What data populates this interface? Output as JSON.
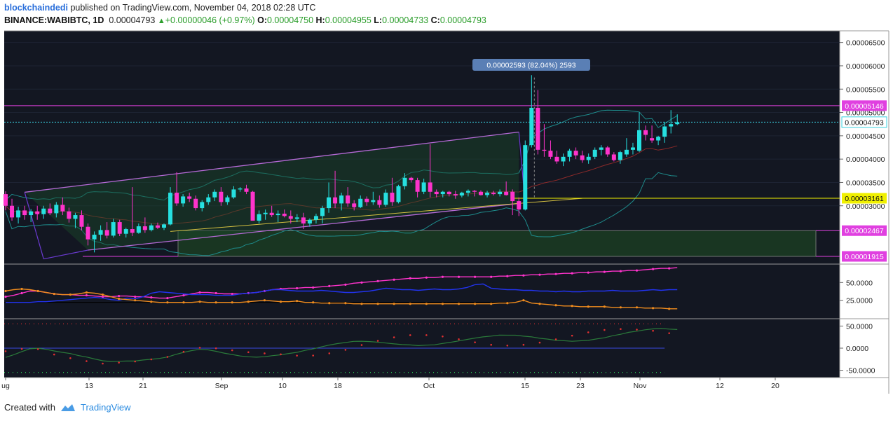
{
  "header": {
    "user": "blockchaindedi",
    "published": "published on TradingView.com, November 04, 2018 02:28 UTC",
    "symbol": "BINANCE:WABIBTC, 1D",
    "last": "0.00004793",
    "change": "+0.00000046 (+0.97%)",
    "o_label": "O:",
    "o": "0.00004750",
    "h_label": "H:",
    "h": "0.00004955",
    "l_label": "L:",
    "l": "0.00004733",
    "c_label": "C:",
    "c": "0.00004793"
  },
  "footer": {
    "created": "Created with",
    "brand": "TradingView"
  },
  "colors": {
    "background": "#131722",
    "up": "#26e0e0",
    "down": "#ff33cc",
    "channel": "#b56ad6",
    "level_magenta": "#e040e0",
    "level_yellow": "#f0f000",
    "zone": "#1b3a22",
    "bollinger": "#1e8c8c",
    "bb_mid": "#8c2a2a",
    "rsi_pink": "#ff33cc",
    "rsi_blue": "#2233ee",
    "rsi_orange": "#f08c1e"
  },
  "chart_data": {
    "type": "candlestick",
    "price_axis": {
      "ticks": [
        "0.00006500",
        "0.00006000",
        "0.00005500",
        "0.00005000",
        "0.00004500",
        "0.00004000",
        "0.00003500",
        "0.00003000"
      ],
      "ylim": [
        1.75e-05,
        6.75e-05
      ]
    },
    "x_ticks": [
      "ug",
      "13",
      "21",
      "Sep",
      "10",
      "18",
      "Oct",
      "15",
      "23",
      "Nov",
      "12",
      "20"
    ],
    "levels": [
      {
        "label": "0.00005146",
        "value": 5.146e-05,
        "kind": "magenta"
      },
      {
        "label": "0.00004793",
        "value": 4.793e-05,
        "kind": "current"
      },
      {
        "label": "0.00003161",
        "value": 3.161e-05,
        "kind": "yellow"
      },
      {
        "label": "0.00002467",
        "value": 2.467e-05,
        "kind": "zone-top"
      },
      {
        "label": "0.00001915",
        "value": 1.915e-05,
        "kind": "zone-bottom"
      }
    ],
    "measure_label": "0.00002593 (82.04%) 2593",
    "candles_ohlc": [
      [
        3.25e-05,
        3.31e-05,
        2.9e-05,
        3e-05
      ],
      [
        3e-05,
        3.15e-05,
        2.68e-05,
        2.75e-05
      ],
      [
        2.75e-05,
        2.98e-05,
        2.62e-05,
        2.9e-05
      ],
      [
        2.9e-05,
        3e-05,
        2.7e-05,
        2.8e-05
      ],
      [
        2.8e-05,
        2.93e-05,
        2.65e-05,
        2.88e-05
      ],
      [
        2.88e-05,
        3e-05,
        2.7e-05,
        2.82e-05
      ],
      [
        2.82e-05,
        3e-05,
        2.72e-05,
        2.94e-05
      ],
      [
        2.94e-05,
        3.05e-05,
        2.8e-05,
        2.84e-05
      ],
      [
        2.84e-05,
        3.08e-05,
        2.75e-05,
        3.02e-05
      ],
      [
        3.02e-05,
        3.18e-05,
        2.8e-05,
        2.88e-05
      ],
      [
        2.88e-05,
        2.96e-05,
        2.64e-05,
        2.72e-05
      ],
      [
        2.72e-05,
        2.85e-05,
        2.52e-05,
        2.8e-05
      ],
      [
        2.8e-05,
        2.9e-05,
        2.47e-05,
        2.55e-05
      ],
      [
        2.55e-05,
        2.62e-05,
        2.15e-05,
        2.28e-05
      ],
      [
        2.28e-05,
        2.45e-05,
        2e-05,
        2.38e-05
      ],
      [
        2.38e-05,
        2.58e-05,
        2.25e-05,
        2.48e-05
      ],
      [
        2.48e-05,
        2.65e-05,
        2.3e-05,
        2.36e-05
      ],
      [
        2.36e-05,
        2.72e-05,
        2.32e-05,
        2.65e-05
      ],
      [
        2.65e-05,
        2.7e-05,
        2.35e-05,
        2.4e-05
      ],
      [
        2.4e-05,
        2.53e-05,
        2.32e-05,
        2.5e-05
      ],
      [
        2.5e-05,
        3.4e-05,
        2.35e-05,
        2.42e-05
      ],
      [
        2.42e-05,
        2.62e-05,
        2.4e-05,
        2.56e-05
      ],
      [
        2.56e-05,
        2.75e-05,
        2.42e-05,
        2.48e-05
      ],
      [
        2.48e-05,
        2.62e-05,
        2.45e-05,
        2.58e-05
      ],
      [
        2.58e-05,
        2.64e-05,
        2.5e-05,
        2.53e-05
      ],
      [
        2.53e-05,
        2.62e-05,
        2.48e-05,
        2.6e-05
      ],
      [
        2.6e-05,
        3.4e-05,
        2.58e-05,
        3.28e-05
      ],
      [
        3.28e-05,
        3.72e-05,
        3e-05,
        3.05e-05
      ],
      [
        3.05e-05,
        3.25e-05,
        2.98e-05,
        3.2e-05
      ],
      [
        3.2e-05,
        3.28e-05,
        3.08e-05,
        3.15e-05
      ],
      [
        3.15e-05,
        3.22e-05,
        2.9e-05,
        2.95e-05
      ],
      [
        2.95e-05,
        3.12e-05,
        2.88e-05,
        3.08e-05
      ],
      [
        3.08e-05,
        3.25e-05,
        3.02e-05,
        3.18e-05
      ],
      [
        3.18e-05,
        3.35e-05,
        3.1e-05,
        3.3e-05
      ],
      [
        3.3e-05,
        3.4e-05,
        3e-05,
        3.08e-05
      ],
      [
        3.08e-05,
        3.22e-05,
        3.02e-05,
        3.18e-05
      ],
      [
        3.18e-05,
        3.42e-05,
        3.15e-05,
        3.35e-05
      ],
      [
        3.35e-05,
        3.4e-05,
        3.3e-05,
        3.37e-05
      ],
      [
        3.37e-05,
        3.45e-05,
        3.25e-05,
        3.3e-05
      ],
      [
        3.3e-05,
        3.32e-05,
        2.75e-05,
        2.68e-05
      ],
      [
        2.68e-05,
        2.9e-05,
        2.62e-05,
        2.82e-05
      ],
      [
        2.82e-05,
        2.92e-05,
        2.7e-05,
        2.85e-05
      ],
      [
        2.85e-05,
        3e-05,
        2.76e-05,
        2.8e-05
      ],
      [
        2.8e-05,
        2.9e-05,
        2.65e-05,
        2.83e-05
      ],
      [
        2.83e-05,
        2.92e-05,
        2.75e-05,
        2.78e-05
      ],
      [
        2.78e-05,
        2.9e-05,
        2.62e-05,
        2.72e-05
      ],
      [
        2.72e-05,
        2.82e-05,
        2.65e-05,
        2.75e-05
      ],
      [
        2.75e-05,
        2.85e-05,
        2.5e-05,
        2.62e-05
      ],
      [
        2.62e-05,
        2.73e-05,
        2.55e-05,
        2.7e-05
      ],
      [
        2.7e-05,
        2.83e-05,
        2.62e-05,
        2.78e-05
      ],
      [
        2.78e-05,
        3e-05,
        2.62e-05,
        2.95e-05
      ],
      [
        2.95e-05,
        3.5e-05,
        2.85e-05,
        3.18e-05
      ],
      [
        3.18e-05,
        3.75e-05,
        2.95e-05,
        3.05e-05
      ],
      [
        3.05e-05,
        3.28e-05,
        2.9e-05,
        3.22e-05
      ],
      [
        3.22e-05,
        3.4e-05,
        2.98e-05,
        3.05e-05
      ],
      [
        3.05e-05,
        3.12e-05,
        2.9e-05,
        2.97e-05
      ],
      [
        2.97e-05,
        3.22e-05,
        2.95e-05,
        3.15e-05
      ],
      [
        3.15e-05,
        3.2e-05,
        3e-05,
        3.08e-05
      ],
      [
        3.08e-05,
        3.3e-05,
        3.02e-05,
        3.12e-05
      ],
      [
        3.12e-05,
        3.22e-05,
        2.96e-05,
        3.02e-05
      ],
      [
        3.02e-05,
        3.35e-05,
        2.98e-05,
        3.28e-05
      ],
      [
        3.28e-05,
        3.6e-05,
        3e-05,
        3.08e-05
      ],
      [
        3.08e-05,
        3.45e-05,
        3.05e-05,
        3.42e-05
      ],
      [
        3.42e-05,
        3.7e-05,
        3.35e-05,
        3.6e-05
      ],
      [
        3.6e-05,
        3.62e-05,
        3.5e-05,
        3.55e-05
      ],
      [
        3.55e-05,
        3.6e-05,
        3.18e-05,
        3.3e-05
      ],
      [
        3.3e-05,
        3.58e-05,
        3.25e-05,
        3.5e-05
      ],
      [
        3.5e-05,
        4.32e-05,
        3.18e-05,
        3.3e-05
      ],
      [
        3.3e-05,
        3.35e-05,
        3.18e-05,
        3.25e-05
      ],
      [
        3.25e-05,
        3.32e-05,
        3.18e-05,
        3.3e-05
      ],
      [
        3.3e-05,
        3.32e-05,
        3.2e-05,
        3.25e-05
      ],
      [
        3.25e-05,
        3.32e-05,
        3.15e-05,
        3.22e-05
      ],
      [
        3.22e-05,
        3.3e-05,
        3.18e-05,
        3.28e-05
      ],
      [
        3.28e-05,
        3.35e-05,
        3.2e-05,
        3.32e-05
      ],
      [
        3.32e-05,
        3.34e-05,
        3.2e-05,
        3.3e-05
      ],
      [
        3.3e-05,
        3.33e-05,
        3.22e-05,
        3.23e-05
      ],
      [
        3.23e-05,
        3.32e-05,
        3.18e-05,
        3.28e-05
      ],
      [
        3.28e-05,
        3.32e-05,
        3.22e-05,
        3.25e-05
      ],
      [
        3.25e-05,
        3.35e-05,
        3.2e-05,
        3.3e-05
      ],
      [
        3.3e-05,
        3.52e-05,
        3.22e-05,
        3.23e-05
      ],
      [
        3.3e-05,
        3.35e-05,
        2.8e-05,
        3.1e-05
      ],
      [
        3.1e-05,
        3.18e-05,
        2.78e-05,
        2.92e-05
      ],
      [
        2.92e-05,
        4.4e-05,
        2.9e-05,
        4.3e-05
      ],
      [
        4.3e-05,
        5.8e-05,
        4.25e-05,
        5.1e-05
      ],
      [
        5.1e-05,
        5.48e-05,
        4.1e-05,
        4.2e-05
      ],
      [
        4.2e-05,
        4.75e-05,
        4.05e-05,
        4.18e-05
      ],
      [
        4.18e-05,
        4.4e-05,
        4e-05,
        4.05e-05
      ],
      [
        4.05e-05,
        4.18e-05,
        3.9e-05,
        3.95e-05
      ],
      [
        3.95e-05,
        4.12e-05,
        3.85e-05,
        4.05e-05
      ],
      [
        4.05e-05,
        4.22e-05,
        3.95e-05,
        4.18e-05
      ],
      [
        4.18e-05,
        4.25e-05,
        4e-05,
        4.08e-05
      ],
      [
        4.08e-05,
        4.18e-05,
        3.92e-05,
        3.98e-05
      ],
      [
        3.98e-05,
        4.12e-05,
        3.9e-05,
        4.05e-05
      ],
      [
        4.05e-05,
        4.25e-05,
        4e-05,
        4.2e-05
      ],
      [
        4.2e-05,
        4.3e-05,
        4.08e-05,
        4.25e-05
      ],
      [
        4.25e-05,
        4.28e-05,
        4.05e-05,
        4.1e-05
      ],
      [
        4.1e-05,
        4.15e-05,
        3.95e-05,
        3.98e-05
      ],
      [
        3.98e-05,
        4.18e-05,
        3.9e-05,
        4.15e-05
      ],
      [
        4.1e-05,
        4.45e-05,
        4.05e-05,
        4.2e-05
      ],
      [
        4.2e-05,
        4.35e-05,
        4.1e-05,
        4.25e-05
      ],
      [
        4.18e-05,
        5e-05,
        4.15e-05,
        4.62e-05
      ],
      [
        4.62e-05,
        4.72e-05,
        4.4e-05,
        4.52e-05
      ],
      [
        4.45e-05,
        4.72e-05,
        4.35e-05,
        4.4e-05
      ],
      [
        4.4e-05,
        4.5e-05,
        4.3e-05,
        4.48e-05
      ],
      [
        4.48e-05,
        4.8e-05,
        4.35e-05,
        4.7e-05
      ],
      [
        4.7e-05,
        5.05e-05,
        4.55e-05,
        4.75e-05
      ],
      [
        4.75e-05,
        4.96e-05,
        4.73e-05,
        4.79e-05
      ]
    ],
    "rsi_panel": {
      "ticks": [
        "50.0000",
        "25.0000"
      ],
      "ylim": [
        0,
        75
      ],
      "series": [
        {
          "name": "",
          "color": "pink",
          "values": [
            30,
            32,
            35,
            38,
            38,
            36,
            34,
            33,
            33,
            32,
            32,
            31,
            30,
            30,
            31,
            31,
            30,
            30,
            29,
            28,
            28,
            30,
            32,
            34,
            36,
            36,
            35,
            34,
            34,
            34,
            35,
            36,
            38,
            40,
            41,
            42,
            42,
            43,
            43,
            44,
            45,
            46,
            47,
            49,
            50,
            51,
            52,
            53,
            54,
            55,
            56,
            56,
            57,
            57,
            58,
            58,
            58,
            58,
            58,
            58,
            58,
            59,
            59,
            60,
            60,
            61,
            61,
            62,
            62,
            63,
            63,
            64,
            64,
            65,
            65,
            66,
            66,
            67,
            67,
            68,
            69,
            70,
            70,
            71
          ]
        },
        {
          "name": "",
          "color": "blue",
          "values": [
            22,
            22,
            22,
            22,
            23,
            23,
            24,
            25,
            26,
            27,
            28,
            29,
            28,
            26,
            25,
            28,
            27,
            30,
            35,
            37,
            36,
            35,
            34,
            33,
            33,
            33,
            32,
            32,
            32,
            34,
            35,
            36,
            38,
            40,
            40,
            39,
            38,
            38,
            38,
            39,
            38,
            37,
            36,
            36,
            37,
            38,
            40,
            42,
            41,
            40,
            40,
            39,
            40,
            41,
            40,
            40,
            41,
            43,
            47,
            48,
            42,
            41,
            40,
            40,
            39,
            39,
            38,
            38,
            37,
            38,
            37,
            37,
            38,
            38,
            38,
            39,
            38,
            38,
            38,
            39,
            40,
            39,
            40,
            40
          ]
        },
        {
          "name": "",
          "color": "orange",
          "values": [
            38,
            40,
            41,
            40,
            38,
            36,
            34,
            33,
            33,
            34,
            36,
            35,
            33,
            30,
            27,
            26,
            25,
            24,
            23,
            22,
            22,
            22,
            22,
            22,
            23,
            22,
            22,
            22,
            22,
            22,
            23,
            24,
            25,
            24,
            23,
            23,
            24,
            22,
            22,
            21,
            21,
            21,
            21,
            20,
            20,
            20,
            20,
            20,
            20,
            20,
            20,
            20,
            20,
            20,
            20,
            20,
            20,
            20,
            20,
            20,
            20,
            21,
            21,
            22,
            25,
            21,
            20,
            19,
            18,
            17,
            17,
            16,
            16,
            16,
            16,
            15,
            15,
            15,
            15,
            14,
            14,
            14,
            13,
            13
          ]
        }
      ]
    },
    "stoch_panel": {
      "ticks": [
        "50.0000",
        "0.0000",
        "-50.0000"
      ],
      "ylim": [
        -65,
        65
      ]
    }
  }
}
